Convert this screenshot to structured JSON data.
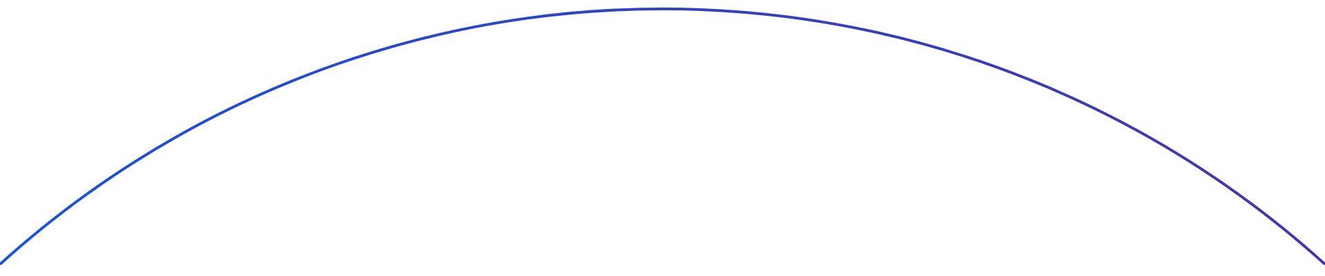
{
  "arc": {
    "color_start": "#1b52d8",
    "color_end": "#4536a8"
  }
}
